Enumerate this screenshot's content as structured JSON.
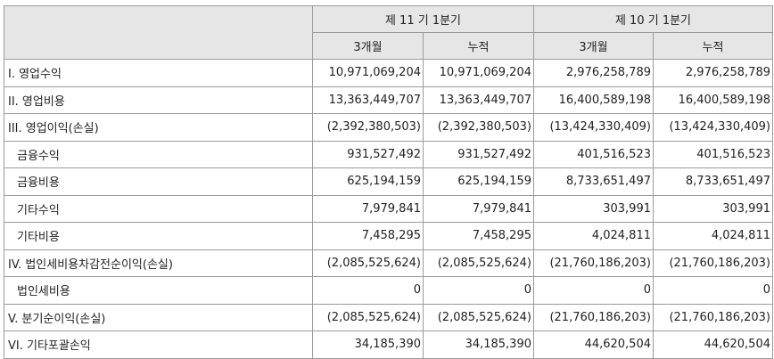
{
  "header": {
    "period_current": "제 11 기 1분기",
    "period_prior": "제 10 기 1분기",
    "sub_3m": "3개월",
    "sub_cum": "누적"
  },
  "rows": [
    {
      "label": "I. 영업수익",
      "v": [
        "10,971,069,204",
        "10,971,069,204",
        "2,976,258,789",
        "2,976,258,789"
      ]
    },
    {
      "label": "II. 영업비용",
      "v": [
        "13,363,449,707",
        "13,363,449,707",
        "16,400,589,198",
        "16,400,589,198"
      ]
    },
    {
      "label": "III. 영업이익(손실)",
      "v": [
        "(2,392,380,503)",
        "(2,392,380,503)",
        "(13,424,330,409)",
        "(13,424,330,409)"
      ]
    },
    {
      "label": "금융수익",
      "v": [
        "931,527,492",
        "931,527,492",
        "401,516,523",
        "401,516,523"
      ]
    },
    {
      "label": "금융비용",
      "v": [
        "625,194,159",
        "625,194,159",
        "8,733,651,497",
        "8,733,651,497"
      ]
    },
    {
      "label": "기타수익",
      "v": [
        "7,979,841",
        "7,979,841",
        "303,991",
        "303,991"
      ]
    },
    {
      "label": "기타비용",
      "v": [
        "7,458,295",
        "7,458,295",
        "4,024,811",
        "4,024,811"
      ]
    },
    {
      "label": "IV. 법인세비용차감전순이익(손실)",
      "v": [
        "(2,085,525,624)",
        "(2,085,525,624)",
        "(21,760,186,203)",
        "(21,760,186,203)"
      ]
    },
    {
      "label": "법인세비용",
      "v": [
        "0",
        "0",
        "0",
        "0"
      ]
    },
    {
      "label": "V. 분기순이익(손실)",
      "v": [
        "(2,085,525,624)",
        "(2,085,525,624)",
        "(21,760,186,203)",
        "(21,760,186,203)"
      ]
    },
    {
      "label": "VI. 기타포괄손익",
      "v": [
        "34,185,390",
        "34,185,390",
        "44,620,504",
        "44,620,504"
      ]
    }
  ]
}
